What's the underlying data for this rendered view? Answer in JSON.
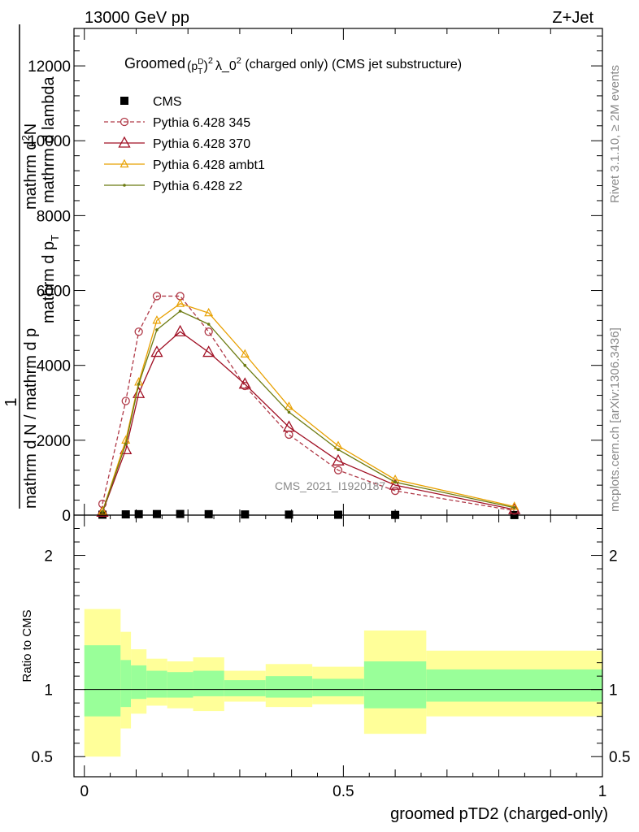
{
  "header": {
    "left": "13000 GeV pp",
    "right": "Z+Jet"
  },
  "side": {
    "rivet": "Rivet 3.1.10, ≥ 2M events",
    "mcplots": "mcplots.cern.ch [arXiv:1306.3436]"
  },
  "watermark": "CMS_2021_I1920187",
  "colors": {
    "cms": "#000000",
    "p345": "#b03a48",
    "p370": "#a01024",
    "ambt1": "#e8a000",
    "z2": "#6b7a10",
    "band_inner": "#99ff99",
    "band_outer": "#ffff99"
  },
  "chart_data": [
    {
      "type": "line",
      "title": "Groomed (p_T^D)^2 λ_0^2  (charged only) (CMS jet substructure)",
      "title_parts": {
        "pre": "Groomed",
        "pT": "p",
        "T": "T",
        "D": "D",
        "two": "2",
        "lam": "λ_0",
        "post": "  (charged only) (CMS jet substructure)"
      },
      "ylabel": {
        "one": "1",
        "numer": "mathrm d",
        "numer_sup": "2",
        "numer_post": "N",
        "denom": "mathrm d N / mathrm d p",
        "denom_post": "mathrm d p",
        "denom_t": "T",
        "denom_tail": " mathrm d lambda"
      },
      "ylim": [
        0,
        13000
      ],
      "xlim": [
        -0.02,
        1.0
      ],
      "yticks": [
        0,
        2000,
        4000,
        6000,
        8000,
        10000,
        12000
      ],
      "ytick_labels": [
        "0",
        "2000",
        "4000",
        "6000",
        "8000",
        "10000",
        "12000"
      ],
      "legend_position": "top-left",
      "series": [
        {
          "name": "CMS",
          "key": "cms",
          "x": [
            0.035,
            0.08,
            0.105,
            0.14,
            0.185,
            0.24,
            0.31,
            0.395,
            0.49,
            0.6,
            0.83
          ],
          "y": [
            12,
            20,
            25,
            28,
            30,
            25,
            18,
            14,
            10,
            6,
            2
          ]
        },
        {
          "name": "Pythia 6.428 345",
          "key": "p345",
          "x": [
            0.035,
            0.08,
            0.105,
            0.14,
            0.185,
            0.24,
            0.31,
            0.395,
            0.49,
            0.6,
            0.83
          ],
          "y": [
            300,
            3050,
            4900,
            5850,
            5850,
            4900,
            3450,
            2150,
            1200,
            650,
            120
          ]
        },
        {
          "name": "Pythia 6.428 370",
          "key": "p370",
          "x": [
            0.035,
            0.08,
            0.105,
            0.14,
            0.185,
            0.24,
            0.31,
            0.395,
            0.49,
            0.6,
            0.83
          ],
          "y": [
            80,
            1750,
            3250,
            4350,
            4900,
            4350,
            3500,
            2350,
            1450,
            800,
            150
          ]
        },
        {
          "name": "Pythia 6.428 ambt1",
          "key": "ambt1",
          "x": [
            0.035,
            0.08,
            0.105,
            0.14,
            0.185,
            0.24,
            0.31,
            0.395,
            0.49,
            0.6,
            0.83
          ],
          "y": [
            100,
            2000,
            3550,
            5200,
            5650,
            5400,
            4300,
            2900,
            1850,
            950,
            230
          ]
        },
        {
          "name": "Pythia 6.428 z2",
          "key": "z2",
          "x": [
            0.035,
            0.08,
            0.105,
            0.14,
            0.185,
            0.24,
            0.31,
            0.395,
            0.49,
            0.6,
            0.83
          ],
          "y": [
            90,
            1900,
            3500,
            4950,
            5450,
            5100,
            4000,
            2750,
            1750,
            880,
            200
          ]
        }
      ]
    },
    {
      "type": "area",
      "ylabel": "Ratio to CMS",
      "xlabel": "groomed pTD2 (charged-only)",
      "xlim": [
        -0.02,
        1.0
      ],
      "ylim": [
        0.35,
        2.3
      ],
      "xticks": [
        0,
        0.5,
        1
      ],
      "xtick_labels": [
        "0",
        "0.5",
        "1"
      ],
      "yticks": [
        0.5,
        1,
        2
      ],
      "ytick_labels": [
        "0.5",
        "1",
        "2"
      ],
      "reference_line": 1,
      "bands": [
        {
          "x0": 0.0,
          "x1": 0.07,
          "inner_lo": 0.8,
          "inner_hi": 1.33,
          "outer_lo": 0.5,
          "outer_hi": 1.6
        },
        {
          "x0": 0.07,
          "x1": 0.09,
          "inner_lo": 0.87,
          "inner_hi": 1.22,
          "outer_lo": 0.71,
          "outer_hi": 1.43
        },
        {
          "x0": 0.09,
          "x1": 0.12,
          "inner_lo": 0.93,
          "inner_hi": 1.18,
          "outer_lo": 0.82,
          "outer_hi": 1.3
        },
        {
          "x0": 0.12,
          "x1": 0.16,
          "inner_lo": 0.94,
          "inner_hi": 1.14,
          "outer_lo": 0.88,
          "outer_hi": 1.23
        },
        {
          "x0": 0.16,
          "x1": 0.21,
          "inner_lo": 0.94,
          "inner_hi": 1.13,
          "outer_lo": 0.86,
          "outer_hi": 1.21
        },
        {
          "x0": 0.21,
          "x1": 0.27,
          "inner_lo": 0.95,
          "inner_hi": 1.14,
          "outer_lo": 0.84,
          "outer_hi": 1.24
        },
        {
          "x0": 0.27,
          "x1": 0.35,
          "inner_lo": 0.95,
          "inner_hi": 1.07,
          "outer_lo": 0.91,
          "outer_hi": 1.14
        },
        {
          "x0": 0.35,
          "x1": 0.44,
          "inner_lo": 0.94,
          "inner_hi": 1.1,
          "outer_lo": 0.87,
          "outer_hi": 1.19
        },
        {
          "x0": 0.44,
          "x1": 0.54,
          "inner_lo": 0.95,
          "inner_hi": 1.08,
          "outer_lo": 0.89,
          "outer_hi": 1.17
        },
        {
          "x0": 0.54,
          "x1": 0.66,
          "inner_lo": 0.86,
          "inner_hi": 1.21,
          "outer_lo": 0.67,
          "outer_hi": 1.44
        },
        {
          "x0": 0.66,
          "x1": 1.0,
          "inner_lo": 0.91,
          "inner_hi": 1.15,
          "outer_lo": 0.8,
          "outer_hi": 1.29
        }
      ]
    }
  ]
}
